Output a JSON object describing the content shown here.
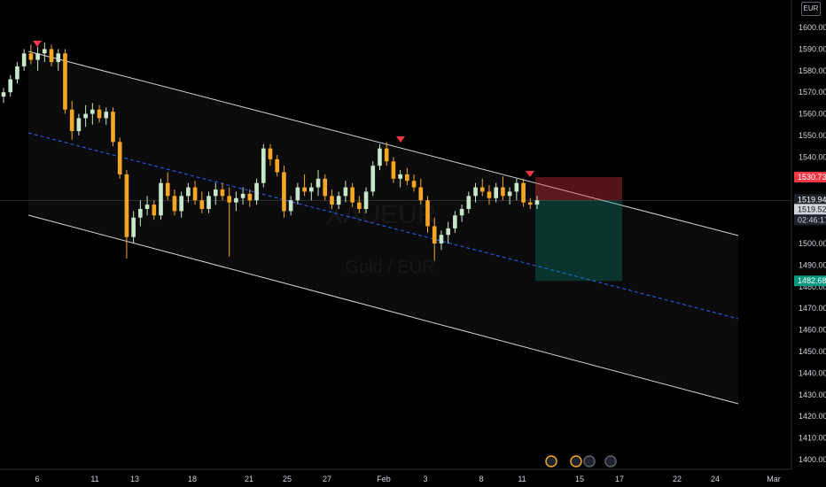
{
  "chart_data": {
    "type": "candlestick",
    "symbol_watermark": "XAUEUR",
    "symbol_description": "Gold / EUR",
    "currency": "EUR",
    "y_axis": {
      "ticks": [
        "1600.000",
        "1590.000",
        "1580.000",
        "1570.000",
        "1560.000",
        "1550.000",
        "1540.000",
        "1530.000",
        "1520.000",
        "1510.000",
        "1500.000",
        "1490.000",
        "1480.000",
        "1470.000",
        "1460.000",
        "1450.000",
        "1440.000",
        "1430.000",
        "1420.000",
        "1410.000",
        "1400.000"
      ],
      "range": [
        1398,
        1610
      ]
    },
    "x_axis": {
      "ticks": [
        "6",
        "11",
        "13",
        "18",
        "21",
        "25",
        "27",
        "Feb",
        "3",
        "8",
        "11",
        "15",
        "17",
        "22",
        "24",
        "Mar"
      ]
    },
    "price_labels": {
      "stop": "1530.736",
      "last": "1519.942",
      "current": "1519.522",
      "countdown": "02:46:17",
      "target": "1482.688"
    },
    "colors": {
      "bull": "#c8e6c9",
      "bear": "#f5a623",
      "channel": "#d1d4dc",
      "midline": "#2962ff",
      "stop_zone": "#f23645",
      "target_zone": "#089981",
      "top_marker": "#f23645",
      "target_badge": "#089981",
      "stop_badge": "#f23645"
    },
    "candles": [
      [
        1568,
        1572,
        1565,
        1570
      ],
      [
        1570,
        1578,
        1568,
        1576
      ],
      [
        1576,
        1584,
        1574,
        1582
      ],
      [
        1582,
        1590,
        1580,
        1588
      ],
      [
        1588,
        1592,
        1583,
        1585
      ],
      [
        1585,
        1591,
        1580,
        1588
      ],
      [
        1588,
        1593,
        1584,
        1590
      ],
      [
        1590,
        1592,
        1582,
        1584
      ],
      [
        1584,
        1590,
        1580,
        1588
      ],
      [
        1588,
        1590,
        1560,
        1562
      ],
      [
        1562,
        1566,
        1548,
        1552
      ],
      [
        1552,
        1560,
        1550,
        1558
      ],
      [
        1558,
        1564,
        1554,
        1560
      ],
      [
        1560,
        1565,
        1555,
        1562
      ],
      [
        1562,
        1564,
        1556,
        1558
      ],
      [
        1558,
        1563,
        1555,
        1561
      ],
      [
        1561,
        1563,
        1545,
        1547
      ],
      [
        1547,
        1549,
        1530,
        1532
      ],
      [
        1532,
        1534,
        1493,
        1503
      ],
      [
        1503,
        1515,
        1500,
        1512
      ],
      [
        1512,
        1520,
        1508,
        1516
      ],
      [
        1516,
        1522,
        1513,
        1518
      ],
      [
        1518,
        1520,
        1511,
        1513
      ],
      [
        1513,
        1530,
        1511,
        1528
      ],
      [
        1528,
        1533,
        1520,
        1522
      ],
      [
        1522,
        1525,
        1513,
        1515
      ],
      [
        1515,
        1524,
        1512,
        1522
      ],
      [
        1522,
        1528,
        1519,
        1526
      ],
      [
        1526,
        1529,
        1518,
        1520
      ],
      [
        1520,
        1524,
        1514,
        1516
      ],
      [
        1516,
        1524,
        1514,
        1522
      ],
      [
        1522,
        1528,
        1518,
        1525
      ],
      [
        1525,
        1528,
        1520,
        1522
      ],
      [
        1522,
        1526,
        1494,
        1519
      ],
      [
        1519,
        1524,
        1515,
        1521
      ],
      [
        1521,
        1526,
        1518,
        1523
      ],
      [
        1523,
        1525,
        1517,
        1520
      ],
      [
        1520,
        1530,
        1518,
        1528
      ],
      [
        1528,
        1546,
        1526,
        1544
      ],
      [
        1544,
        1546,
        1536,
        1539
      ],
      [
        1539,
        1541,
        1531,
        1533
      ],
      [
        1533,
        1536,
        1512,
        1515
      ],
      [
        1515,
        1522,
        1513,
        1520
      ],
      [
        1520,
        1528,
        1518,
        1526
      ],
      [
        1526,
        1532,
        1522,
        1524
      ],
      [
        1524,
        1528,
        1520,
        1526
      ],
      [
        1526,
        1534,
        1522,
        1530
      ],
      [
        1530,
        1532,
        1520,
        1522
      ],
      [
        1522,
        1525,
        1516,
        1518
      ],
      [
        1518,
        1524,
        1516,
        1522
      ],
      [
        1522,
        1529,
        1519,
        1526
      ],
      [
        1526,
        1528,
        1517,
        1519
      ],
      [
        1519,
        1522,
        1514,
        1516
      ],
      [
        1516,
        1526,
        1514,
        1524
      ],
      [
        1524,
        1538,
        1522,
        1536
      ],
      [
        1536,
        1546,
        1534,
        1544
      ],
      [
        1544,
        1547,
        1536,
        1538
      ],
      [
        1538,
        1540,
        1528,
        1530
      ],
      [
        1530,
        1534,
        1526,
        1532
      ],
      [
        1532,
        1535,
        1527,
        1529
      ],
      [
        1529,
        1532,
        1524,
        1526
      ],
      [
        1526,
        1530,
        1518,
        1520
      ],
      [
        1520,
        1522,
        1505,
        1508
      ],
      [
        1508,
        1512,
        1492,
        1500
      ],
      [
        1500,
        1506,
        1497,
        1504
      ],
      [
        1504,
        1510,
        1500,
        1507
      ],
      [
        1507,
        1515,
        1505,
        1513
      ],
      [
        1513,
        1518,
        1510,
        1516
      ],
      [
        1516,
        1524,
        1514,
        1522
      ],
      [
        1522,
        1528,
        1519,
        1526
      ],
      [
        1526,
        1530,
        1522,
        1524
      ],
      [
        1524,
        1527,
        1518,
        1521
      ],
      [
        1521,
        1528,
        1519,
        1526
      ],
      [
        1526,
        1531,
        1520,
        1522
      ],
      [
        1522,
        1526,
        1518,
        1524
      ],
      [
        1524,
        1530,
        1520,
        1528
      ],
      [
        1528,
        1530,
        1517,
        1519
      ],
      [
        1519,
        1521,
        1516,
        1518
      ],
      [
        1518,
        1522,
        1516,
        1520
      ]
    ]
  }
}
